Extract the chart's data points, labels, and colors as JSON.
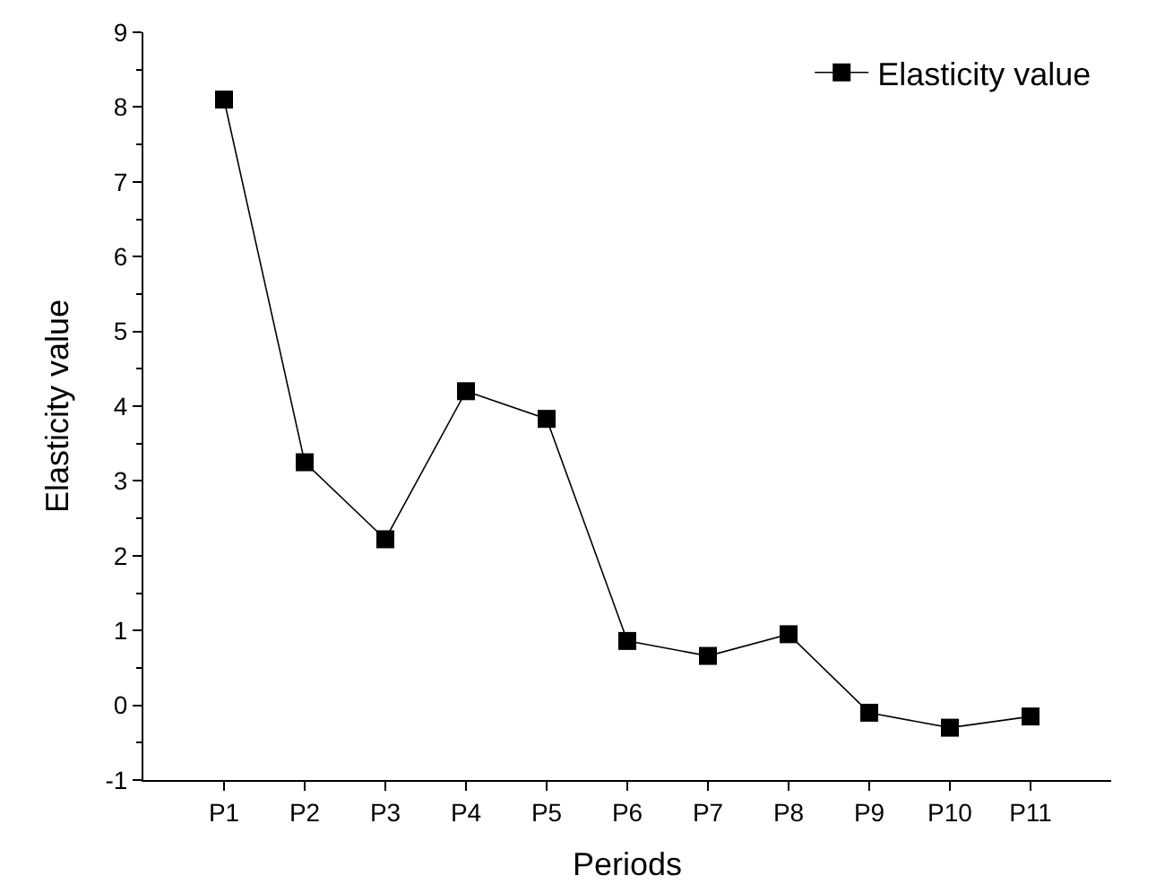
{
  "chart_data": {
    "type": "line",
    "xlabel": "Periods",
    "ylabel": "Elasticity value",
    "categories": [
      "P1",
      "P2",
      "P3",
      "P4",
      "P5",
      "P6",
      "P7",
      "P8",
      "P9",
      "P10",
      "P11"
    ],
    "series": [
      {
        "name": "Elasticity value",
        "color": "#000000",
        "values": [
          8.1,
          3.25,
          2.22,
          4.2,
          3.83,
          0.86,
          0.66,
          0.95,
          -0.1,
          -0.3,
          -0.15
        ]
      }
    ],
    "ylim": [
      -1,
      9
    ],
    "yticks": [
      -1,
      0,
      1,
      2,
      3,
      4,
      5,
      6,
      7,
      8,
      9
    ],
    "grid": false,
    "legend": "top right",
    "marker": "square",
    "line_style": "solid"
  }
}
